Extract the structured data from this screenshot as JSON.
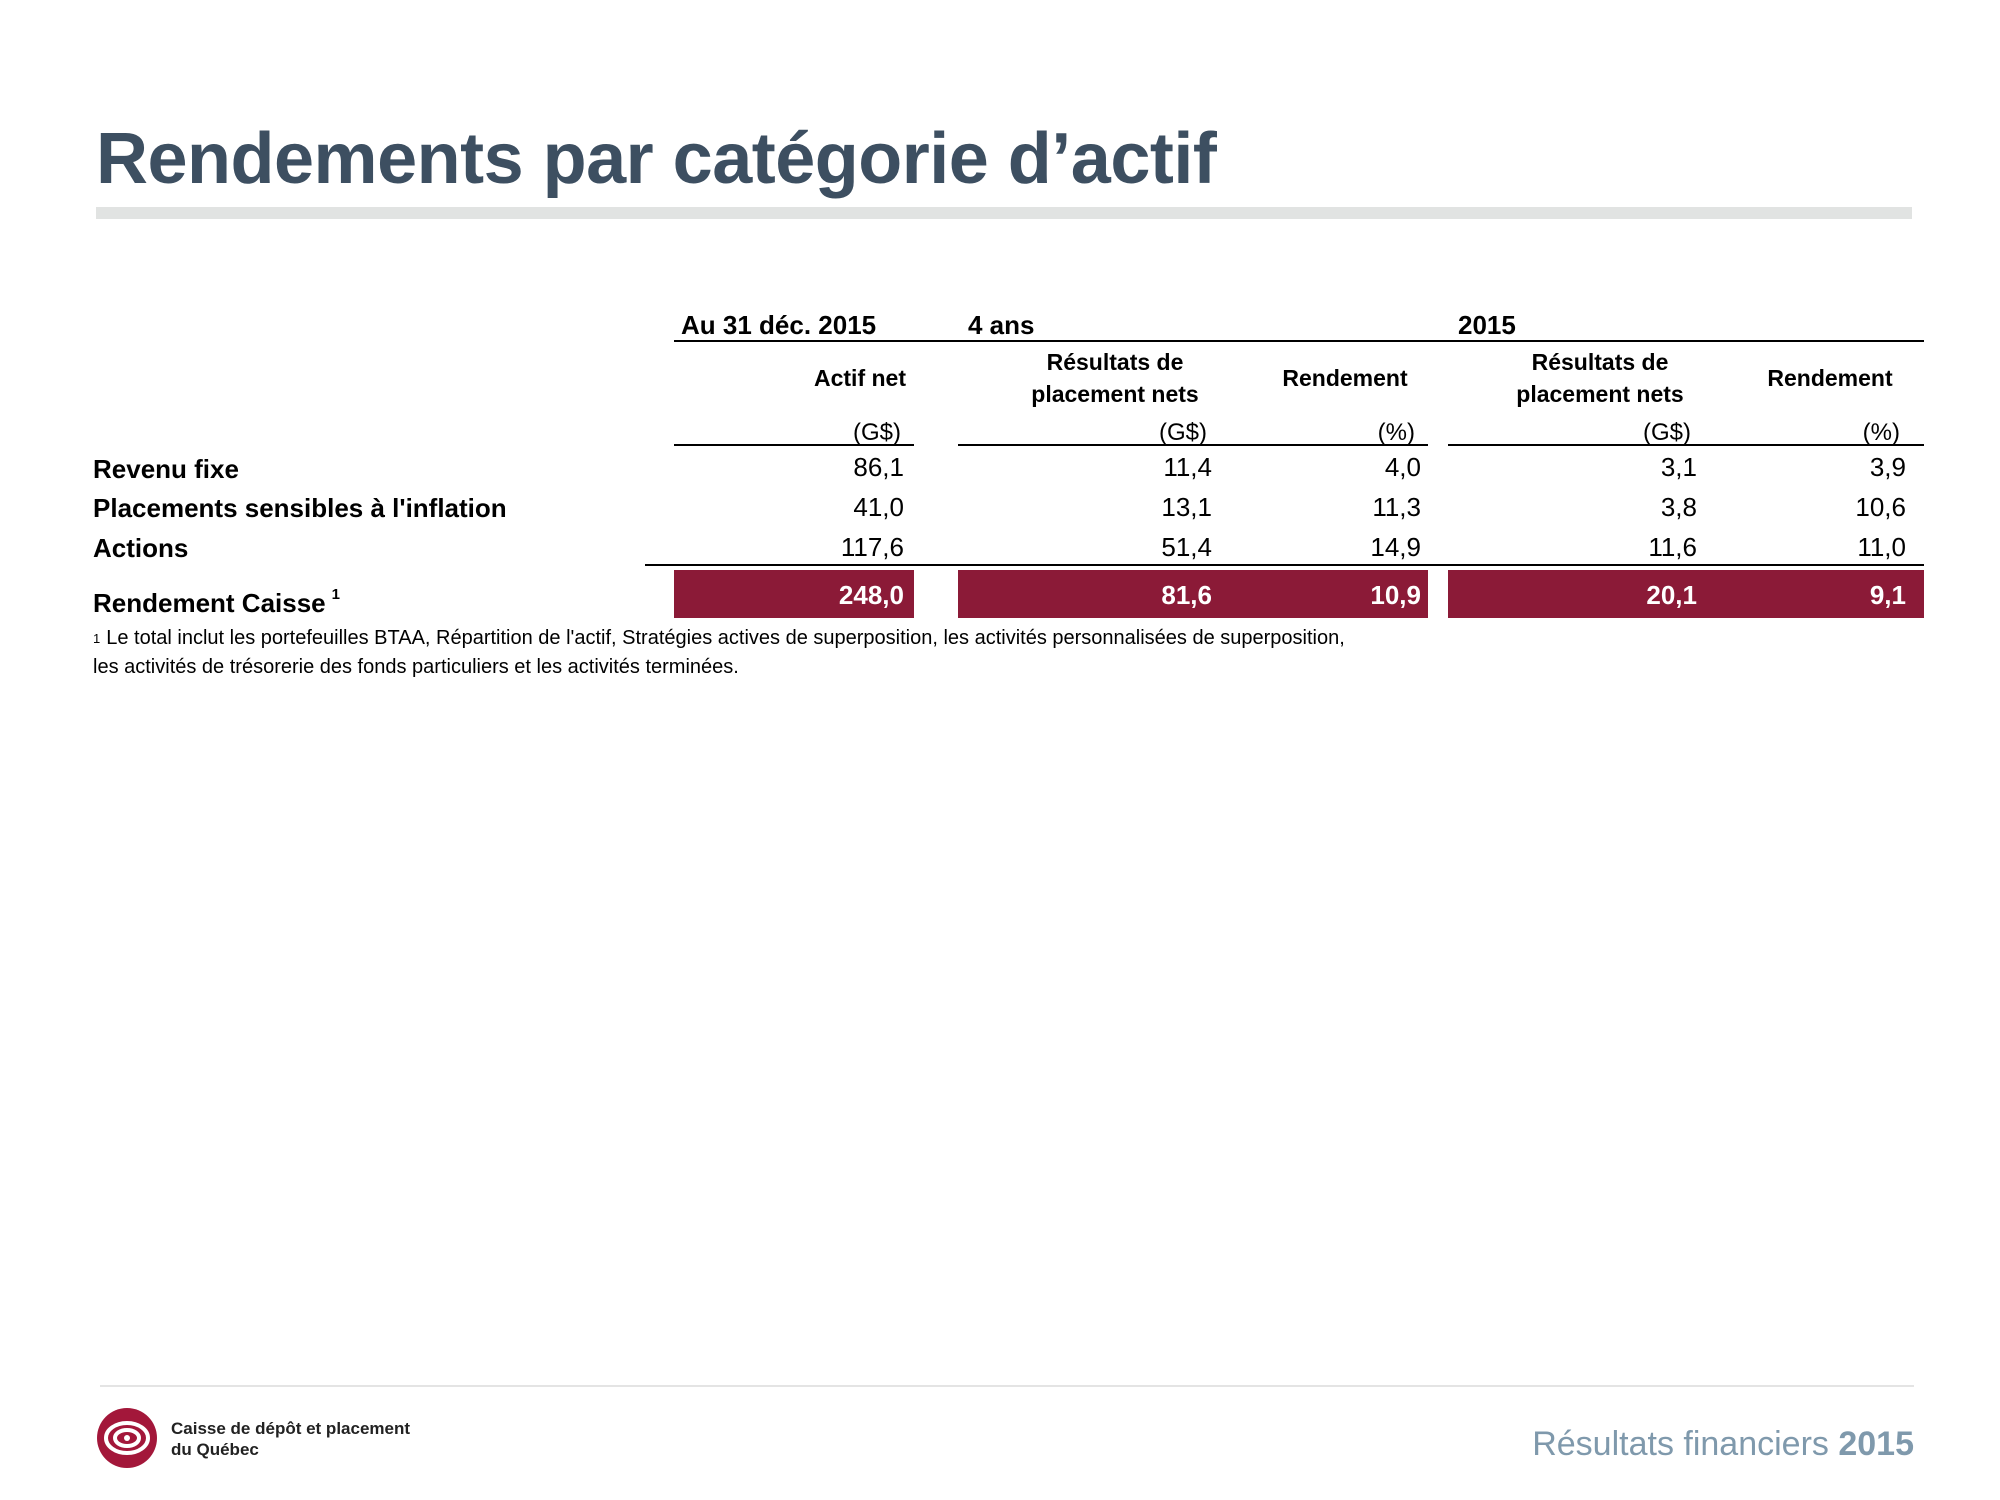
{
  "title": "Rendements par catégorie d’actif",
  "table": {
    "groups": {
      "as_of": "Au 31 déc. 2015",
      "four_years": "4 ans",
      "year": "2015"
    },
    "columns": {
      "actif_net": "Actif net",
      "resultats_4ans_l1": "Résultats de",
      "resultats_4ans_l2": "placement nets",
      "rendement_4ans": "Rendement",
      "resultats_2015_l1": "Résultats de",
      "resultats_2015_l2": "placement nets",
      "rendement_2015": "Rendement"
    },
    "units": [
      "(G$)",
      "(G$)",
      "(%)",
      "(G$)",
      "(%)"
    ],
    "rows": [
      {
        "label": "Revenu fixe",
        "values": [
          "86,1",
          "11,4",
          "4,0",
          "3,1",
          "3,9"
        ]
      },
      {
        "label": "Placements sensibles à l'inflation",
        "values": [
          "41,0",
          "13,1",
          "11,3",
          "3,8",
          "10,6"
        ]
      },
      {
        "label": "Actions",
        "values": [
          "117,6",
          "51,4",
          "14,9",
          "11,6",
          "11,0"
        ]
      }
    ],
    "total": {
      "label": "Rendement Caisse",
      "footnote_mark": "1",
      "values": [
        "248,0",
        "81,6",
        "10,9",
        "20,1",
        "9,1"
      ],
      "highlight_color": "#8b1a37"
    }
  },
  "footnote": {
    "mark": "1",
    "line1": "Le total inclut les portefeuilles BTAA, Répartition de l'actif, Stratégies actives de superposition, les activités personnalisées de superposition,",
    "line2": "les activités de trésorerie des fonds particuliers et les activités terminées."
  },
  "footer": {
    "org_line1": "Caisse de dépôt et placement",
    "org_line2": "du Québec",
    "doc_title": "Résultats financiers",
    "doc_year": "2015"
  },
  "colors": {
    "title": "#3d4f61",
    "accent": "#8b1a37",
    "footer_text": "#7f99ac"
  }
}
